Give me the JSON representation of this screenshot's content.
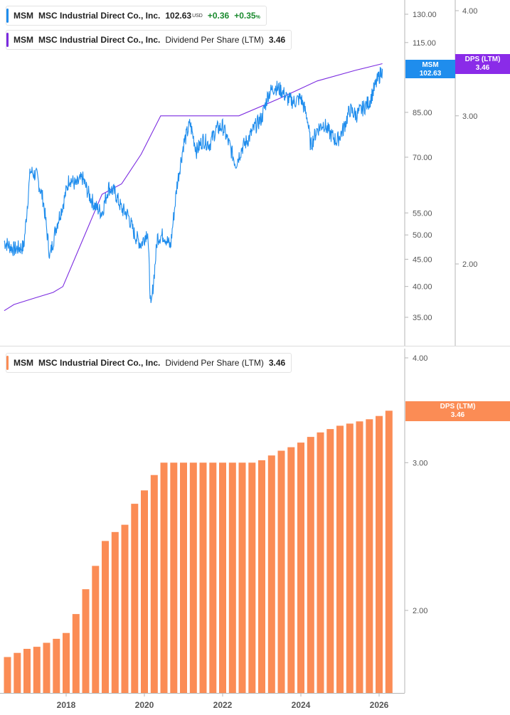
{
  "legend_price": {
    "ticker": "MSM",
    "company": "MSC Industrial Direct Co., Inc.",
    "price": "102.63",
    "currency": "USD",
    "change": "+0.36",
    "change_pct": "+0.35",
    "pct_symbol": "%"
  },
  "legend_dps_top": {
    "ticker": "MSM",
    "company": "MSC Industrial Direct Co., Inc.",
    "metric": "Dividend Per Share (LTM)",
    "value": "3.46"
  },
  "legend_dps_bottom": {
    "ticker": "MSM",
    "company": "MSC Industrial Direct Co., Inc.",
    "metric": "Dividend Per Share (LTM)",
    "value": "3.46"
  },
  "tags": {
    "price_ticker": "MSM",
    "price_value": "102.63",
    "dps_top_label": "DPS (LTM)",
    "dps_top_value": "3.46",
    "dps_bottom_label": "DPS (LTM)",
    "dps_bottom_value": "3.46"
  },
  "colors": {
    "price_line": "#1f8ded",
    "dps_line": "#7b2be0",
    "dps_bars": "#fb8c55",
    "axis": "#888888",
    "label": "#555555"
  },
  "chart_data": [
    {
      "type": "line",
      "scale": "log",
      "series": [
        {
          "name": "MSM",
          "points": [
            [
              "2016-06",
              48.5
            ],
            [
              "2016-09",
              47.0
            ],
            [
              "2016-12",
              47.5
            ],
            [
              "2017-02",
              66.0
            ],
            [
              "2017-04",
              64.5
            ],
            [
              "2017-06",
              58.0
            ],
            [
              "2017-08",
              45.5
            ],
            [
              "2017-10",
              52.0
            ],
            [
              "2017-12",
              57.0
            ],
            [
              "2018-02",
              64.0
            ],
            [
              "2018-04",
              62.0
            ],
            [
              "2018-06",
              64.0
            ],
            [
              "2018-08",
              59.5
            ],
            [
              "2018-10",
              56.5
            ],
            [
              "2018-12",
              55.0
            ],
            [
              "2019-02",
              61.5
            ],
            [
              "2019-04",
              60.0
            ],
            [
              "2019-06",
              56.0
            ],
            [
              "2019-08",
              54.5
            ],
            [
              "2019-10",
              50.0
            ],
            [
              "2019-12",
              48.0
            ],
            [
              "2020-02",
              51.0
            ],
            [
              "2020-03",
              36.0
            ],
            [
              "2020-05",
              49.5
            ],
            [
              "2020-07",
              50.0
            ],
            [
              "2020-09",
              47.5
            ],
            [
              "2020-11",
              62.0
            ],
            [
              "2021-01",
              74.0
            ],
            [
              "2021-03",
              81.0
            ],
            [
              "2021-05",
              72.0
            ],
            [
              "2021-07",
              75.5
            ],
            [
              "2021-09",
              74.0
            ],
            [
              "2021-11",
              79.0
            ],
            [
              "2022-01",
              80.0
            ],
            [
              "2022-03",
              74.0
            ],
            [
              "2022-05",
              68.0
            ],
            [
              "2022-07",
              73.0
            ],
            [
              "2022-09",
              76.0
            ],
            [
              "2022-11",
              80.0
            ],
            [
              "2023-01",
              83.0
            ],
            [
              "2023-03",
              92.0
            ],
            [
              "2023-05",
              95.0
            ],
            [
              "2023-07",
              93.5
            ],
            [
              "2023-09",
              90.0
            ],
            [
              "2023-11",
              89.0
            ],
            [
              "2024-01",
              90.5
            ],
            [
              "2024-03",
              83.0
            ],
            [
              "2024-04",
              73.5
            ],
            [
              "2024-06",
              79.0
            ],
            [
              "2024-08",
              81.0
            ],
            [
              "2024-10",
              77.5
            ],
            [
              "2024-12",
              75.0
            ],
            [
              "2025-02",
              79.0
            ],
            [
              "2025-04",
              86.0
            ],
            [
              "2025-06",
              84.0
            ],
            [
              "2025-08",
              86.5
            ],
            [
              "2025-10",
              89.0
            ],
            [
              "2025-12",
              96.0
            ],
            [
              "2026-02",
              102.63
            ]
          ]
        },
        {
          "name": "Dividend Per Share (LTM)",
          "axis": "right",
          "points": [
            [
              "2016-06",
              1.76
            ],
            [
              "2016-09",
              1.79
            ],
            [
              "2017-03",
              1.82
            ],
            [
              "2017-09",
              1.85
            ],
            [
              "2017-12",
              1.88
            ],
            [
              "2018-12",
              2.42
            ],
            [
              "2019-06",
              2.49
            ],
            [
              "2019-12",
              2.7
            ],
            [
              "2020-06",
              3.0
            ],
            [
              "2022-06",
              3.0
            ],
            [
              "2023-06",
              3.14
            ],
            [
              "2024-06",
              3.3
            ],
            [
              "2025-06",
              3.4
            ],
            [
              "2026-02",
              3.46
            ]
          ]
        }
      ],
      "y_ticks": [
        35,
        40,
        45,
        50,
        55,
        70,
        85,
        115,
        130
      ],
      "y2_ticks": [
        2.0,
        3.0,
        4.0
      ]
    },
    {
      "type": "bar",
      "scale": "log",
      "series": [
        {
          "name": "Dividend Per Share (LTM)",
          "values": [
            [
              "2016-07",
              1.76
            ],
            [
              "2016-10",
              1.78
            ],
            [
              "2017-01",
              1.8
            ],
            [
              "2017-04",
              1.81
            ],
            [
              "2017-07",
              1.83
            ],
            [
              "2017-10",
              1.85
            ],
            [
              "2018-01",
              1.88
            ],
            [
              "2018-04",
              1.98
            ],
            [
              "2018-07",
              2.12
            ],
            [
              "2018-10",
              2.26
            ],
            [
              "2019-01",
              2.42
            ],
            [
              "2019-04",
              2.48
            ],
            [
              "2019-07",
              2.53
            ],
            [
              "2019-10",
              2.68
            ],
            [
              "2020-01",
              2.78
            ],
            [
              "2020-04",
              2.9
            ],
            [
              "2020-07",
              3.0
            ],
            [
              "2020-10",
              3.0
            ],
            [
              "2021-01",
              3.0
            ],
            [
              "2021-04",
              3.0
            ],
            [
              "2021-07",
              3.0
            ],
            [
              "2021-10",
              3.0
            ],
            [
              "2022-01",
              3.0
            ],
            [
              "2022-04",
              3.0
            ],
            [
              "2022-07",
              3.0
            ],
            [
              "2022-10",
              3.0
            ],
            [
              "2023-01",
              3.02
            ],
            [
              "2023-04",
              3.06
            ],
            [
              "2023-07",
              3.1
            ],
            [
              "2023-10",
              3.13
            ],
            [
              "2024-01",
              3.17
            ],
            [
              "2024-04",
              3.22
            ],
            [
              "2024-07",
              3.26
            ],
            [
              "2024-10",
              3.29
            ],
            [
              "2025-01",
              3.32
            ],
            [
              "2025-04",
              3.34
            ],
            [
              "2025-07",
              3.36
            ],
            [
              "2025-10",
              3.38
            ],
            [
              "2026-01",
              3.41
            ],
            [
              "2026-04",
              3.46
            ]
          ]
        }
      ],
      "y_ticks": [
        2.0,
        3.0,
        4.0
      ],
      "x_ticks": [
        "2018",
        "2020",
        "2022",
        "2024",
        "2026"
      ]
    }
  ]
}
